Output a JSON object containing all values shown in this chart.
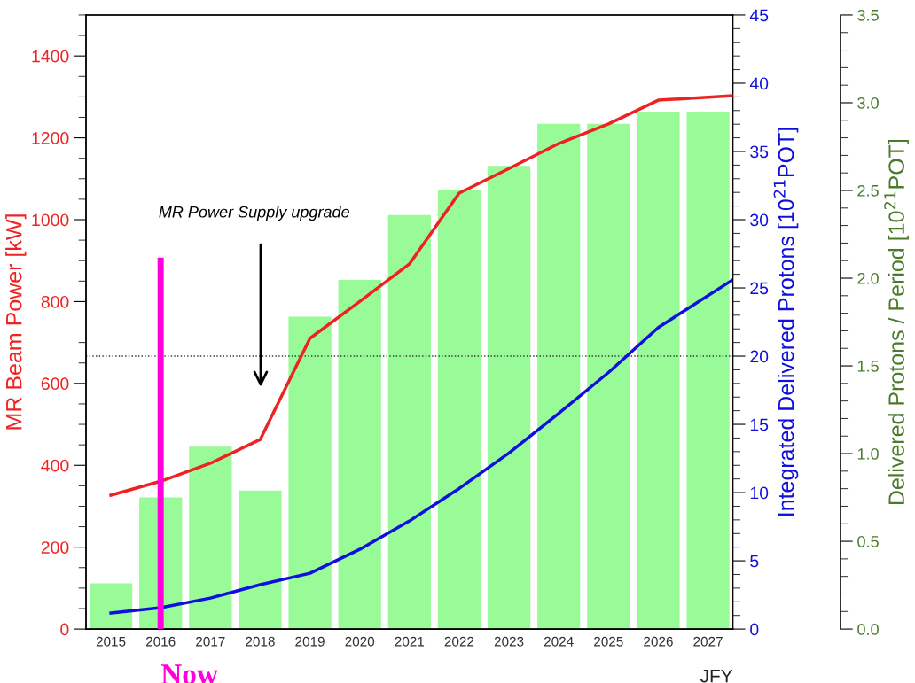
{
  "chart_data": {
    "type": "bar",
    "xlabel": "JFY",
    "ylabel": "MR Beam Power [kW]",
    "y2label": "Integrated Delivered Protons [10$^{21}$POT]",
    "y3label": "Delivered Protons / Period [10$^{21}$POT]",
    "xlim": [
      2014.5,
      2027.5
    ],
    "xticks": [
      2015,
      2016,
      2017,
      2018,
      2019,
      2020,
      2021,
      2022,
      2023,
      2024,
      2025,
      2026,
      2027
    ],
    "ylim": [
      0,
      1500
    ],
    "yticks": [
      0,
      200,
      400,
      600,
      800,
      1000,
      1200,
      1400
    ],
    "y2lim": [
      0,
      45
    ],
    "y2ticks": [
      0,
      5,
      10,
      15,
      20,
      25,
      30,
      35,
      40,
      45
    ],
    "y3lim": [
      0,
      3.5
    ],
    "y3ticks": [
      {
        "value": 0,
        "label": "0.0"
      },
      {
        "value": 0.5,
        "label": "0.5"
      },
      {
        "value": 1,
        "label": "1.0"
      },
      {
        "value": 1.5,
        "label": "1.5"
      },
      {
        "value": 2,
        "label": "2.0"
      },
      {
        "value": 2.5,
        "label": "2.5"
      },
      {
        "value": 3,
        "label": "3.0"
      },
      {
        "value": 3.5,
        "label": "3.5"
      }
    ],
    "series": [
      {
        "axis": "y3",
        "color": "#98fb98",
        "x": [
          2015,
          2016,
          2017,
          2018,
          2019,
          2020,
          2021,
          2022,
          2023,
          2024,
          2025,
          2026,
          2027
        ],
        "values": [
          0.26,
          0.75,
          1.04,
          0.79,
          1.78,
          1.99,
          2.36,
          2.5,
          2.64,
          2.88,
          2.88,
          2.95,
          2.95
        ]
      },
      {
        "type": "line",
        "axis": "y",
        "color": "#ee2222",
        "x": [
          2015,
          2016,
          2017,
          2018,
          2019,
          2020,
          2021,
          2022,
          2023,
          2024,
          2025,
          2026,
          2027.5
        ],
        "values": [
          327,
          361,
          405,
          463,
          710,
          800,
          892,
          1065,
          1125,
          1186,
          1234,
          1292,
          1303
        ]
      },
      {
        "type": "line",
        "axis": "y2",
        "color": "#1010dd",
        "x": [
          2015,
          2016,
          2017,
          2018,
          2019,
          2020,
          2021,
          2022,
          2023,
          2024,
          2025,
          2026,
          2027.5
        ],
        "values": [
          1.17,
          1.56,
          2.27,
          3.25,
          4.09,
          5.84,
          7.92,
          10.3,
          12.9,
          15.8,
          18.8,
          22.1,
          25.6
        ]
      }
    ],
    "ref_lines": [
      {
        "axis": "y2",
        "value": 20,
        "line_style": "dotted",
        "color": "#333333"
      },
      {
        "axis": "x",
        "value": 2016,
        "label": "Now",
        "color": "#ff00dd"
      }
    ],
    "annotations": [
      "MR Power Supply upgrade"
    ],
    "grid": false,
    "legend": false
  }
}
